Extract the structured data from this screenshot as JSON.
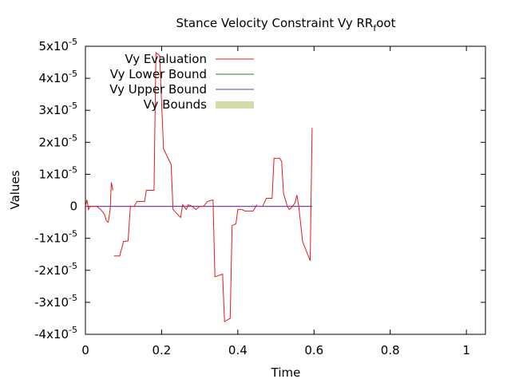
{
  "chart_data": {
    "type": "line",
    "title_main": "Stance Velocity Constraint Vy RR",
    "title_sub": "f",
    "title_tail": "oot",
    "xlabel": "Time",
    "ylabel": "Values",
    "xlim": [
      0,
      1.05
    ],
    "ylim": [
      -4e-05,
      5e-05
    ],
    "x_ticks": [
      "0",
      "0.2",
      "0.4",
      "0.6",
      "0.8",
      "1"
    ],
    "x_tick_values": [
      0,
      0.2,
      0.4,
      0.6,
      0.8,
      1.0
    ],
    "y_ticks": [
      {
        "value": 5e-05,
        "mant": "5x10",
        "exp": "-5"
      },
      {
        "value": 4e-05,
        "mant": "4x10",
        "exp": "-5"
      },
      {
        "value": 3e-05,
        "mant": "3x10",
        "exp": "-5"
      },
      {
        "value": 2e-05,
        "mant": "2x10",
        "exp": "-5"
      },
      {
        "value": 1e-05,
        "mant": "1x10",
        "exp": "-5"
      },
      {
        "value": 0,
        "mant": "0",
        "exp": ""
      },
      {
        "value": -1e-05,
        "mant": "-1x10",
        "exp": "-5"
      },
      {
        "value": -2e-05,
        "mant": "-2x10",
        "exp": "-5"
      },
      {
        "value": -3e-05,
        "mant": "-3x10",
        "exp": "-5"
      },
      {
        "value": -4e-05,
        "mant": "-4x10",
        "exp": "-5"
      }
    ],
    "legend_position": "top-left",
    "series": [
      {
        "name": "Vy Evaluation",
        "color": "#e41a1c",
        "style": "line",
        "segments": [
          [
            [
              0,
              0
            ],
            [
              0.004,
              2e-06
            ],
            [
              0.008,
              -1e-06
            ],
            [
              0.012,
              0
            ],
            [
              0.02,
              0
            ],
            [
              0.03,
              0
            ],
            [
              0.04,
              -1e-06
            ],
            [
              0.05,
              -2.5e-06
            ],
            [
              0.055,
              -4.5e-06
            ],
            [
              0.06,
              -5e-06
            ],
            [
              0.065,
              -1e-06
            ],
            [
              0.068,
              7.5e-06
            ],
            [
              0.072,
              5e-06
            ]
          ],
          [
            [
              0.075,
              -1.55e-05
            ],
            [
              0.09,
              -1.55e-05
            ],
            [
              0.1,
              -1.1e-05
            ],
            [
              0.112,
              -1.08e-05
            ],
            [
              0.118,
              0
            ],
            [
              0.128,
              0
            ],
            [
              0.135,
              1.5e-06
            ],
            [
              0.155,
              1.5e-06
            ],
            [
              0.16,
              5e-06
            ],
            [
              0.18,
              5e-06
            ],
            [
              0.185,
              4.8e-05
            ],
            [
              0.195,
              4.7e-05
            ],
            [
              0.205,
              1.8e-05
            ],
            [
              0.225,
              1.3e-05
            ],
            [
              0.23,
              -1e-06
            ],
            [
              0.25,
              -3.5e-06
            ],
            [
              0.255,
              5e-07
            ],
            [
              0.265,
              -1e-06
            ],
            [
              0.27,
              5e-07
            ],
            [
              0.28,
              0
            ],
            [
              0.29,
              -1e-06
            ],
            [
              0.3,
              0
            ],
            [
              0.31,
              0
            ],
            [
              0.32,
              1.5e-06
            ],
            [
              0.335,
              2e-06
            ],
            [
              0.34,
              -2.2e-05
            ],
            [
              0.36,
              -2.12e-05
            ],
            [
              0.365,
              -3.6e-05
            ],
            [
              0.38,
              -3.5e-05
            ],
            [
              0.385,
              -6e-06
            ],
            [
              0.395,
              -5.5e-06
            ],
            [
              0.4,
              -1e-06
            ],
            [
              0.41,
              -1e-06
            ],
            [
              0.42,
              -1.5e-06
            ],
            [
              0.44,
              -1.5e-06
            ],
            [
              0.45,
              5e-07
            ]
          ],
          [
            [
              0.465,
              0
            ],
            [
              0.475,
              2.5e-06
            ],
            [
              0.49,
              2.5e-06
            ],
            [
              0.495,
              1.5e-05
            ],
            [
              0.51,
              1.5e-05
            ],
            [
              0.515,
              1.4e-05
            ],
            [
              0.52,
              4e-06
            ],
            [
              0.53,
              0
            ],
            [
              0.535,
              -1e-06
            ],
            [
              0.54,
              -5e-07
            ],
            [
              0.55,
              1e-06
            ],
            [
              0.555,
              3.5e-06
            ],
            [
              0.56,
              0
            ],
            [
              0.57,
              -1.1e-05
            ],
            [
              0.59,
              -1.7e-05
            ],
            [
              0.595,
              2.45e-05
            ]
          ]
        ]
      },
      {
        "name": "Vy Lower Bound",
        "color": "#2e7d32",
        "style": "line",
        "segments": [
          [
            [
              0,
              0
            ],
            [
              0.595,
              0
            ]
          ]
        ]
      },
      {
        "name": "Vy Upper Bound",
        "color": "#7b2fd0",
        "style": "line",
        "segments": [
          [
            [
              0,
              0
            ],
            [
              0.595,
              0
            ]
          ]
        ]
      },
      {
        "name": "Vy Bounds",
        "color": "#d4d9aa",
        "style": "fill",
        "segments": []
      }
    ]
  }
}
